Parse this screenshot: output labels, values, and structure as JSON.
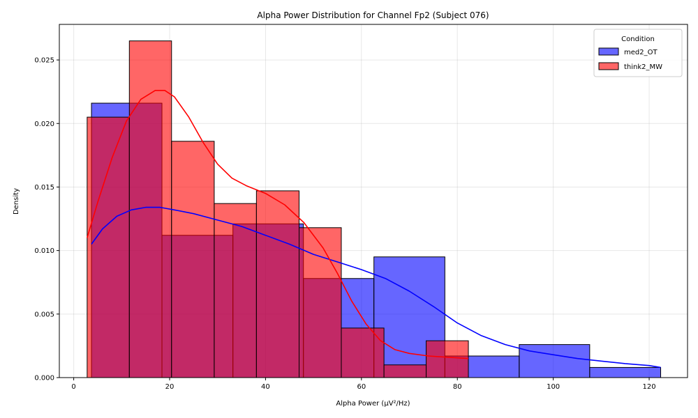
{
  "chart_data": {
    "type": "histogram",
    "title": "Alpha Power Distribution for Channel Fp2 (Subject 076)",
    "xlabel": "Alpha Power (µV²/Hz)",
    "ylabel": "Density",
    "xlim": [
      -3,
      128
    ],
    "ylim": [
      0,
      0.0278
    ],
    "xticks": [
      "0",
      "20",
      "40",
      "60",
      "80",
      "100",
      "120"
    ],
    "xtick_values": [
      0,
      20,
      40,
      60,
      80,
      100,
      120
    ],
    "yticks": [
      "0.000",
      "0.005",
      "0.010",
      "0.015",
      "0.020",
      "0.025"
    ],
    "ytick_values": [
      0,
      0.005,
      0.01,
      0.015,
      0.02,
      0.025
    ],
    "grid": true,
    "legend": {
      "title": "Condition",
      "placement": "top-right"
    },
    "series": [
      {
        "name": "med2_OT",
        "color": "#0000ff",
        "bins": [
          {
            "x0": 3.7,
            "x1": 18.4,
            "density": 0.0216
          },
          {
            "x0": 18.4,
            "x1": 33.2,
            "density": 0.0112
          },
          {
            "x0": 33.2,
            "x1": 47.9,
            "density": 0.0121
          },
          {
            "x0": 47.9,
            "x1": 62.6,
            "density": 0.0078
          },
          {
            "x0": 62.6,
            "x1": 77.4,
            "density": 0.0095
          },
          {
            "x0": 77.4,
            "x1": 92.9,
            "density": 0.0017
          },
          {
            "x0": 92.9,
            "x1": 107.6,
            "density": 0.0026
          },
          {
            "x0": 107.6,
            "x1": 122.4,
            "density": 0.0008
          }
        ],
        "kde": [
          [
            3.7,
            0.0105
          ],
          [
            6,
            0.0117
          ],
          [
            9,
            0.0127
          ],
          [
            12,
            0.0132
          ],
          [
            15,
            0.0134
          ],
          [
            18,
            0.0134
          ],
          [
            21,
            0.0132
          ],
          [
            25,
            0.0129
          ],
          [
            30,
            0.0124
          ],
          [
            35,
            0.0119
          ],
          [
            40,
            0.0112
          ],
          [
            45,
            0.0105
          ],
          [
            50,
            0.0097
          ],
          [
            55,
            0.0091
          ],
          [
            60,
            0.0085
          ],
          [
            65,
            0.0078
          ],
          [
            70,
            0.0068
          ],
          [
            75,
            0.0056
          ],
          [
            80,
            0.0043
          ],
          [
            85,
            0.0033
          ],
          [
            90,
            0.0026
          ],
          [
            95,
            0.0021
          ],
          [
            100,
            0.0018
          ],
          [
            105,
            0.0015
          ],
          [
            110,
            0.0013
          ],
          [
            115,
            0.0011
          ],
          [
            120,
            0.00095
          ],
          [
            122.4,
            0.0008
          ]
        ]
      },
      {
        "name": "think2_MW",
        "color": "#ff0000",
        "bins": [
          {
            "x0": 2.8,
            "x1": 11.6,
            "density": 0.0205
          },
          {
            "x0": 11.6,
            "x1": 20.4,
            "density": 0.0265
          },
          {
            "x0": 20.4,
            "x1": 29.3,
            "density": 0.0186
          },
          {
            "x0": 29.3,
            "x1": 38.1,
            "density": 0.0137
          },
          {
            "x0": 38.1,
            "x1": 47.0,
            "density": 0.0147
          },
          {
            "x0": 47.0,
            "x1": 55.8,
            "density": 0.0118
          },
          {
            "x0": 55.8,
            "x1": 64.7,
            "density": 0.0039
          },
          {
            "x0": 64.7,
            "x1": 73.5,
            "density": 0.001
          },
          {
            "x0": 73.5,
            "x1": 82.3,
            "density": 0.0029
          }
        ],
        "kde": [
          [
            2.8,
            0.011
          ],
          [
            5,
            0.0138
          ],
          [
            8,
            0.0173
          ],
          [
            11,
            0.0202
          ],
          [
            14,
            0.0219
          ],
          [
            17,
            0.0226
          ],
          [
            19,
            0.0226
          ],
          [
            21,
            0.0221
          ],
          [
            24,
            0.0205
          ],
          [
            27,
            0.0185
          ],
          [
            30,
            0.0168
          ],
          [
            33,
            0.0157
          ],
          [
            36,
            0.0151
          ],
          [
            40,
            0.0145
          ],
          [
            44,
            0.0136
          ],
          [
            48,
            0.0122
          ],
          [
            52,
            0.0102
          ],
          [
            55,
            0.0082
          ],
          [
            58,
            0.006
          ],
          [
            61,
            0.0042
          ],
          [
            64,
            0.0029
          ],
          [
            67,
            0.0022
          ],
          [
            70,
            0.0019
          ],
          [
            74,
            0.0017
          ],
          [
            78,
            0.0016
          ],
          [
            82.3,
            0.0015
          ]
        ]
      }
    ]
  }
}
